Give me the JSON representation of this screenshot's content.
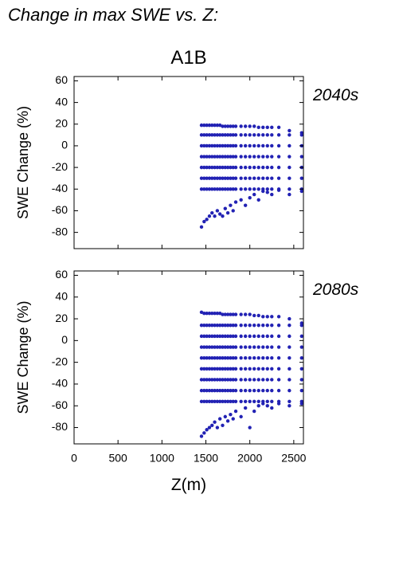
{
  "title": "Change in max SWE vs. Z:",
  "scenario": "A1B",
  "chart_data": [
    {
      "type": "scatter",
      "label": "2040s",
      "ylabel": "SWE Change (%)",
      "color": "#2222b4",
      "xlim": [
        0,
        2610
      ],
      "ylim": [
        -95,
        64
      ],
      "xticks": [
        0,
        500,
        1000,
        1500,
        2000,
        2500
      ],
      "yticks": [
        -80,
        -60,
        -40,
        -20,
        0,
        20,
        40,
        60
      ],
      "x": [
        1450,
        1450,
        1450,
        1450,
        1450,
        1450,
        1450,
        1450,
        1480,
        1480,
        1480,
        1480,
        1480,
        1480,
        1480,
        1480,
        1510,
        1510,
        1510,
        1510,
        1510,
        1510,
        1510,
        1510,
        1540,
        1540,
        1540,
        1540,
        1540,
        1540,
        1540,
        1540,
        1570,
        1570,
        1570,
        1570,
        1570,
        1570,
        1570,
        1570,
        1600,
        1600,
        1600,
        1600,
        1600,
        1600,
        1600,
        1600,
        1630,
        1630,
        1630,
        1630,
        1630,
        1630,
        1630,
        1630,
        1660,
        1660,
        1660,
        1660,
        1660,
        1660,
        1660,
        1660,
        1690,
        1690,
        1690,
        1690,
        1690,
        1690,
        1690,
        1690,
        1720,
        1720,
        1720,
        1720,
        1720,
        1720,
        1720,
        1720,
        1750,
        1750,
        1750,
        1750,
        1750,
        1750,
        1750,
        1750,
        1780,
        1780,
        1780,
        1780,
        1780,
        1780,
        1780,
        1780,
        1810,
        1810,
        1810,
        1810,
        1810,
        1810,
        1810,
        1810,
        1840,
        1840,
        1840,
        1840,
        1840,
        1840,
        1840,
        1840,
        1900,
        1900,
        1900,
        1900,
        1900,
        1900,
        1900,
        1900,
        1950,
        1950,
        1950,
        1950,
        1950,
        1950,
        1950,
        1950,
        2000,
        2000,
        2000,
        2000,
        2000,
        2000,
        2000,
        2000,
        2050,
        2050,
        2050,
        2050,
        2050,
        2050,
        2050,
        2050,
        2100,
        2100,
        2100,
        2100,
        2100,
        2100,
        2100,
        2100,
        2150,
        2150,
        2150,
        2150,
        2150,
        2150,
        2150,
        2150,
        2200,
        2200,
        2200,
        2200,
        2200,
        2200,
        2200,
        2200,
        2250,
        2250,
        2250,
        2250,
        2250,
        2250,
        2250,
        2250,
        2330,
        2330,
        2330,
        2330,
        2330,
        2330,
        2330,
        2330,
        2450,
        2450,
        2450,
        2450,
        2450,
        2450,
        2450,
        2450,
        2590,
        2590,
        2590,
        2590,
        2590,
        2590,
        2590,
        2590
      ],
      "y": [
        19,
        10,
        0,
        -10,
        -20,
        -30,
        -40,
        -75,
        19,
        10,
        0,
        -10,
        -20,
        -30,
        -40,
        -70,
        19,
        10,
        0,
        -10,
        -20,
        -30,
        -40,
        -68,
        19,
        10,
        0,
        -10,
        -20,
        -30,
        -40,
        -65,
        19,
        10,
        0,
        -10,
        -20,
        -30,
        -40,
        -62,
        19,
        10,
        0,
        -10,
        -20,
        -30,
        -40,
        -65,
        19,
        10,
        0,
        -10,
        -20,
        -30,
        -40,
        -60,
        19,
        10,
        0,
        -10,
        -20,
        -30,
        -40,
        -63,
        18,
        10,
        0,
        -10,
        -20,
        -30,
        -40,
        -65,
        18,
        10,
        0,
        -10,
        -20,
        -30,
        -40,
        -58,
        18,
        10,
        0,
        -10,
        -20,
        -30,
        -40,
        -62,
        18,
        10,
        0,
        -10,
        -20,
        -30,
        -40,
        -55,
        18,
        10,
        0,
        -10,
        -20,
        -30,
        -40,
        -60,
        18,
        10,
        0,
        -10,
        -20,
        -30,
        -40,
        -52,
        18,
        10,
        0,
        -10,
        -20,
        -30,
        -40,
        -50,
        18,
        10,
        0,
        -10,
        -20,
        -30,
        -40,
        -55,
        18,
        10,
        0,
        -10,
        -20,
        -30,
        -40,
        -48,
        18,
        10,
        0,
        -10,
        -20,
        -30,
        -40,
        -45,
        17,
        10,
        0,
        -10,
        -20,
        -30,
        -40,
        -50,
        17,
        10,
        0,
        -10,
        -20,
        -30,
        -40,
        -42,
        17,
        10,
        0,
        -10,
        -20,
        -30,
        -40,
        -43,
        17,
        10,
        0,
        -10,
        -20,
        -30,
        -40,
        -45,
        17,
        10,
        0,
        -10,
        -20,
        -30,
        -40,
        -41,
        14,
        10,
        0,
        -10,
        -20,
        -30,
        -40,
        -45,
        12,
        10,
        0,
        -10,
        -20,
        -30,
        -40,
        -42
      ]
    },
    {
      "type": "scatter",
      "label": "2080s",
      "ylabel": "SWE Change (%)",
      "xlabel": "Z(m)",
      "color": "#2222b4",
      "xlim": [
        0,
        2610
      ],
      "ylim": [
        -95,
        64
      ],
      "xticks": [
        0,
        500,
        1000,
        1500,
        2000,
        2500
      ],
      "yticks": [
        -80,
        -60,
        -40,
        -20,
        0,
        20,
        40,
        60
      ],
      "x": [
        1450,
        1450,
        1450,
        1450,
        1450,
        1450,
        1450,
        1450,
        1450,
        1450,
        1480,
        1480,
        1480,
        1480,
        1480,
        1480,
        1480,
        1480,
        1480,
        1480,
        1510,
        1510,
        1510,
        1510,
        1510,
        1510,
        1510,
        1510,
        1510,
        1510,
        1540,
        1540,
        1540,
        1540,
        1540,
        1540,
        1540,
        1540,
        1540,
        1540,
        1570,
        1570,
        1570,
        1570,
        1570,
        1570,
        1570,
        1570,
        1570,
        1570,
        1600,
        1600,
        1600,
        1600,
        1600,
        1600,
        1600,
        1600,
        1600,
        1600,
        1630,
        1630,
        1630,
        1630,
        1630,
        1630,
        1630,
        1630,
        1630,
        1630,
        1660,
        1660,
        1660,
        1660,
        1660,
        1660,
        1660,
        1660,
        1660,
        1660,
        1690,
        1690,
        1690,
        1690,
        1690,
        1690,
        1690,
        1690,
        1690,
        1690,
        1720,
        1720,
        1720,
        1720,
        1720,
        1720,
        1720,
        1720,
        1720,
        1720,
        1750,
        1750,
        1750,
        1750,
        1750,
        1750,
        1750,
        1750,
        1750,
        1750,
        1780,
        1780,
        1780,
        1780,
        1780,
        1780,
        1780,
        1780,
        1780,
        1780,
        1810,
        1810,
        1810,
        1810,
        1810,
        1810,
        1810,
        1810,
        1810,
        1810,
        1840,
        1840,
        1840,
        1840,
        1840,
        1840,
        1840,
        1840,
        1840,
        1840,
        1900,
        1900,
        1900,
        1900,
        1900,
        1900,
        1900,
        1900,
        1900,
        1900,
        1950,
        1950,
        1950,
        1950,
        1950,
        1950,
        1950,
        1950,
        1950,
        1950,
        2000,
        2000,
        2000,
        2000,
        2000,
        2000,
        2000,
        2000,
        2000,
        2000,
        2050,
        2050,
        2050,
        2050,
        2050,
        2050,
        2050,
        2050,
        2050,
        2050,
        2100,
        2100,
        2100,
        2100,
        2100,
        2100,
        2100,
        2100,
        2100,
        2100,
        2150,
        2150,
        2150,
        2150,
        2150,
        2150,
        2150,
        2150,
        2150,
        2150,
        2200,
        2200,
        2200,
        2200,
        2200,
        2200,
        2200,
        2200,
        2200,
        2200,
        2250,
        2250,
        2250,
        2250,
        2250,
        2250,
        2250,
        2250,
        2250,
        2250,
        2330,
        2330,
        2330,
        2330,
        2330,
        2330,
        2330,
        2330,
        2330,
        2330,
        2450,
        2450,
        2450,
        2450,
        2450,
        2450,
        2450,
        2450,
        2450,
        2450,
        2590,
        2590,
        2590,
        2590,
        2590,
        2590,
        2590,
        2590,
        2590,
        2590
      ],
      "y": [
        26,
        14,
        4,
        -6,
        -16,
        -26,
        -36,
        -46,
        -56,
        -88,
        25,
        14,
        4,
        -6,
        -16,
        -26,
        -36,
        -46,
        -56,
        -85,
        25,
        14,
        4,
        -6,
        -16,
        -26,
        -36,
        -46,
        -56,
        -82,
        25,
        14,
        4,
        -6,
        -16,
        -26,
        -36,
        -46,
        -56,
        -80,
        25,
        14,
        4,
        -6,
        -16,
        -26,
        -36,
        -46,
        -56,
        -78,
        25,
        14,
        4,
        -6,
        -16,
        -26,
        -36,
        -46,
        -56,
        -75,
        25,
        14,
        4,
        -6,
        -16,
        -26,
        -36,
        -46,
        -56,
        -80,
        25,
        14,
        4,
        -6,
        -16,
        -26,
        -36,
        -46,
        -56,
        -72,
        24,
        14,
        4,
        -6,
        -16,
        -26,
        -36,
        -46,
        -56,
        -78,
        24,
        14,
        4,
        -6,
        -16,
        -26,
        -36,
        -46,
        -56,
        -70,
        24,
        14,
        4,
        -6,
        -16,
        -26,
        -36,
        -46,
        -56,
        -74,
        24,
        14,
        4,
        -6,
        -16,
        -26,
        -36,
        -46,
        -56,
        -68,
        24,
        14,
        4,
        -6,
        -16,
        -26,
        -36,
        -46,
        -56,
        -72,
        24,
        14,
        4,
        -6,
        -16,
        -26,
        -36,
        -46,
        -56,
        -65,
        24,
        14,
        4,
        -6,
        -16,
        -26,
        -36,
        -46,
        -56,
        -70,
        24,
        14,
        4,
        -6,
        -16,
        -26,
        -36,
        -46,
        -56,
        -62,
        24,
        14,
        4,
        -6,
        -16,
        -26,
        -36,
        -46,
        -56,
        -80,
        23,
        14,
        4,
        -6,
        -16,
        -26,
        -36,
        -46,
        -56,
        -65,
        23,
        14,
        4,
        -6,
        -16,
        -26,
        -36,
        -46,
        -56,
        -60,
        22,
        14,
        4,
        -6,
        -16,
        -26,
        -36,
        -46,
        -56,
        -58,
        22,
        14,
        4,
        -6,
        -16,
        -26,
        -36,
        -46,
        -56,
        -60,
        22,
        14,
        4,
        -6,
        -16,
        -26,
        -36,
        -46,
        -56,
        -62,
        22,
        14,
        4,
        -6,
        -16,
        -26,
        -36,
        -46,
        -56,
        -58,
        20,
        14,
        4,
        -6,
        -16,
        -26,
        -36,
        -46,
        -56,
        -60,
        16,
        14,
        4,
        -6,
        -16,
        -26,
        -36,
        -46,
        -56,
        -58
      ]
    }
  ]
}
